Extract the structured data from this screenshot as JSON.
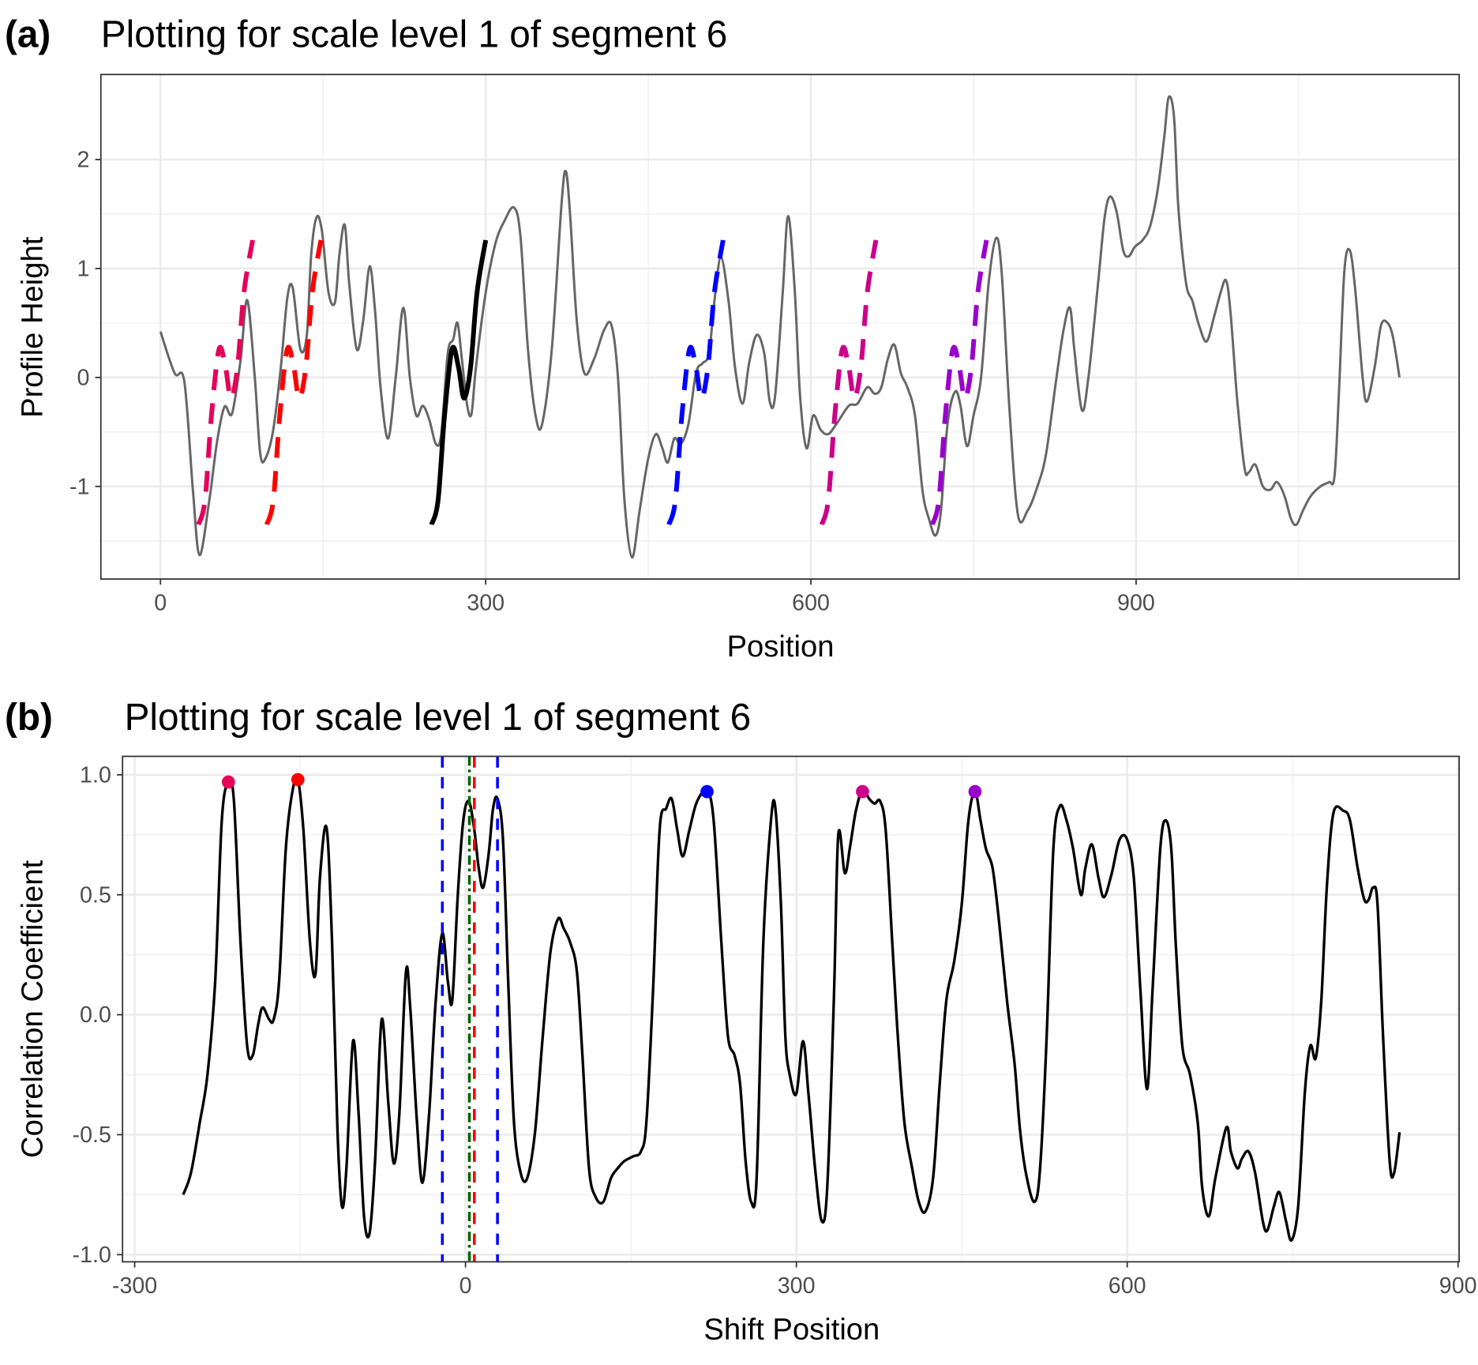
{
  "panels": [
    {
      "tag": "(a)",
      "title": "Plotting for scale level 1 of segment 6"
    },
    {
      "tag": "(b)",
      "title": "Plotting for scale level 1 of segment 6"
    }
  ],
  "chart_data": [
    {
      "type": "line",
      "title": "Plotting for scale level 1 of segment 6",
      "xlabel": "Position",
      "ylabel": "Profile Height",
      "xlim": [
        -55,
        1198
      ],
      "ylim": [
        -1.85,
        2.78
      ],
      "grid": true,
      "xticks": [
        0,
        300,
        600,
        900
      ],
      "xtick_labels": [
        "0",
        "300",
        "600",
        "900"
      ],
      "yticks": [
        2,
        1,
        0,
        -1
      ],
      "ytick_labels": [
        "2",
        "1",
        "0",
        "-1"
      ],
      "profile": {
        "color": "#666666",
        "x": [
          0,
          13,
          22,
          30,
          36,
          45,
          52,
          59,
          66,
          74,
          80,
          87,
          92,
          97,
          104,
          111,
          117,
          122,
          129,
          135,
          139,
          144,
          149,
          155,
          161,
          165,
          170,
          174,
          181,
          187,
          193,
          198,
          203,
          210,
          217,
          224,
          230,
          236,
          242,
          248,
          254,
          259,
          265,
          270,
          274,
          278,
          283,
          287,
          291,
          300,
          309,
          317,
          326,
          332,
          339,
          346,
          352,
          361,
          370,
          374,
          378,
          384,
          391,
          400,
          409,
          416,
          422,
          428,
          435,
          442,
          450,
          457,
          463,
          468,
          474,
          480,
          487,
          494,
          500,
          506,
          511,
          517,
          524,
          530,
          537,
          543,
          550,
          557,
          562,
          567,
          574,
          579,
          585,
          590,
          596,
          602,
          609,
          616,
          624,
          635,
          643,
          652,
          659,
          665,
          671,
          677,
          683,
          689,
          696,
          703,
          709,
          715,
          720,
          726,
          733,
          738,
          744,
          750,
          757,
          764,
          771,
          776,
          783,
          791,
          800,
          809,
          817,
          826,
          833,
          839,
          843,
          850,
          856,
          865,
          871,
          876,
          882,
          888,
          893,
          899,
          906,
          913,
          920,
          926,
          930,
          935,
          939,
          946,
          952,
          958,
          965,
          972,
          978,
          983,
          987,
          993,
          1000,
          1004,
          1010,
          1017,
          1024,
          1030,
          1037,
          1043,
          1048,
          1054,
          1061,
          1070,
          1078,
          1083,
          1087,
          1092,
          1097,
          1102,
          1109,
          1113,
          1120,
          1126,
          1132,
          1137,
          1143
        ],
        "y": [
          0.42,
          0.04,
          -0.04,
          -1.05,
          -1.63,
          -1.13,
          -0.6,
          -0.27,
          -0.33,
          0.17,
          0.71,
          0,
          -0.7,
          -0.74,
          -0.48,
          0.09,
          0.73,
          0.82,
          0.26,
          0.39,
          1.12,
          1.47,
          1.34,
          0.78,
          0.69,
          1.12,
          1.4,
          0.87,
          0.26,
          0.52,
          1.02,
          0.6,
          -0.09,
          -0.56,
          0,
          0.64,
          0,
          -0.35,
          -0.26,
          -0.39,
          -0.61,
          -0.52,
          0.22,
          0.35,
          0.5,
          0.17,
          -0.26,
          -0.33,
          0.09,
          0.78,
          1.23,
          1.43,
          1.56,
          1.3,
          0.26,
          -0.35,
          -0.43,
          0.26,
          1.6,
          1.89,
          1.47,
          0.52,
          0.04,
          0.17,
          0.43,
          0.48,
          0,
          -1.13,
          -1.65,
          -1.22,
          -0.74,
          -0.52,
          -0.65,
          -0.78,
          -0.56,
          -0.61,
          -0.43,
          0.04,
          0.13,
          0.22,
          0.7,
          1.1,
          0.7,
          0.09,
          -0.24,
          0.13,
          0.39,
          0.22,
          -0.22,
          -0.17,
          0.78,
          1.48,
          0.82,
          -0.17,
          -0.65,
          -0.35,
          -0.48,
          -0.52,
          -0.42,
          -0.26,
          -0.24,
          -0.09,
          -0.15,
          -0.09,
          0.17,
          0.3,
          0.04,
          -0.09,
          -0.35,
          -1.04,
          -1.3,
          -1.45,
          -1.22,
          -0.43,
          -0.13,
          -0.26,
          -0.63,
          -0.35,
          0,
          0.87,
          1.28,
          0.96,
          -0.26,
          -1.26,
          -1.22,
          -1.0,
          -0.7,
          -0.04,
          0.43,
          0.64,
          0.26,
          -0.3,
          0,
          0.87,
          1.47,
          1.66,
          1.52,
          1.17,
          1.11,
          1.2,
          1.26,
          1.39,
          1.73,
          2.21,
          2.57,
          2.39,
          1.56,
          0.87,
          0.7,
          0.48,
          0.33,
          0.56,
          0.78,
          0.89,
          0.61,
          -0.17,
          -0.83,
          -0.87,
          -0.8,
          -1.0,
          -1.03,
          -0.96,
          -1.09,
          -1.3,
          -1.35,
          -1.22,
          -1.09,
          -1.0,
          -0.96,
          -0.91,
          -0.17,
          0.96,
          1.17,
          0.82,
          0,
          -0.22,
          0.09,
          0.48,
          0.5,
          0.37,
          0
        ]
      },
      "segment": {
        "color": "#000000",
        "x": [
          250,
          256,
          262,
          269,
          275,
          280,
          286,
          292,
          300
        ],
        "y": [
          -1.35,
          -1.13,
          -0.35,
          0.26,
          0.09,
          -0.19,
          0.09,
          0.78,
          1.26
        ]
      },
      "matches": [
        {
          "shift": -215,
          "color": "#E6005A"
        },
        {
          "shift": -152,
          "color": "#FF0000"
        },
        {
          "shift": 219,
          "color": "#0000FF"
        },
        {
          "shift": 360,
          "color": "#CC0088"
        },
        {
          "shift": 462,
          "color": "#9900CC"
        }
      ]
    },
    {
      "type": "line",
      "title": "Plotting for scale level 1 of segment 6",
      "xlabel": "Shift Position",
      "ylabel": "Correlation Coefficient",
      "xlim": [
        -311,
        901
      ],
      "ylim": [
        -1.03,
        1.077
      ],
      "grid": true,
      "xticks": [
        -300,
        0,
        300,
        600,
        900
      ],
      "xtick_labels": [
        "-300",
        "0",
        "300",
        "600",
        "900"
      ],
      "yticks": [
        1.0,
        0.5,
        0.0,
        -0.5,
        -1.0
      ],
      "ytick_labels": [
        "1.0",
        "0.5",
        "0.0",
        "-0.5",
        "-1.0"
      ],
      "correlation": {
        "color": "#000000",
        "x": [
          -256,
          -249,
          -241,
          -234,
          -227,
          -221,
          -215,
          -210,
          -204,
          -198,
          -193,
          -188,
          -184,
          -178,
          -174,
          -169,
          -163,
          -157,
          -152,
          -147,
          -141,
          -136,
          -132,
          -126,
          -121,
          -116,
          -112,
          -108,
          -102,
          -97,
          -92,
          -87,
          -82,
          -76,
          -70,
          -65,
          -60,
          -54,
          -50,
          -44,
          -39,
          -33,
          -27,
          -21,
          -16,
          -12,
          -7,
          -2,
          3,
          8,
          12,
          16,
          21,
          25,
          29,
          34,
          39,
          44,
          50,
          56,
          63,
          70,
          77,
          84,
          89,
          95,
          101,
          106,
          112,
          118,
          125,
          132,
          138,
          144,
          152,
          159,
          164,
          170,
          176,
          182,
          187,
          192,
          197,
          203,
          210,
          219,
          225,
          232,
          238,
          244,
          249,
          254,
          259,
          264,
          270,
          277,
          281,
          286,
          290,
          294,
          300,
          306,
          311,
          317,
          323,
          328,
          334,
          338,
          344,
          349,
          354,
          360,
          366,
          371,
          376,
          381,
          387,
          392,
          398,
          405,
          411,
          417,
          424,
          430,
          436,
          443,
          450,
          456,
          462,
          467,
          472,
          478,
          484,
          491,
          498,
          503,
          509,
          516,
          521,
          527,
          533,
          539,
          545,
          551,
          558,
          562,
          568,
          574,
          579,
          586,
          593,
          600,
          606,
          612,
          618,
          623,
          630,
          635,
          640,
          644,
          650,
          657,
          664,
          668,
          674,
          680,
          690,
          694,
          700,
          704,
          710,
          716,
          723,
          727,
          733,
          738,
          744,
          749,
          755,
          761,
          766,
          771,
          776,
          781,
          787,
          796,
          802,
          809,
          815,
          819,
          823,
          827,
          832,
          838,
          842,
          847
        ],
        "y": [
          -0.75,
          -0.66,
          -0.45,
          -0.25,
          0.14,
          0.81,
          0.97,
          0.89,
          0.3,
          -0.13,
          -0.17,
          -0.04,
          0.03,
          -0.02,
          -0.02,
          0.14,
          0.69,
          0.93,
          0.98,
          0.77,
          0.3,
          0.17,
          0.57,
          0.78,
          0.3,
          -0.49,
          -0.8,
          -0.64,
          -0.11,
          -0.41,
          -0.84,
          -0.91,
          -0.61,
          -0.02,
          -0.37,
          -0.62,
          -0.41,
          0.18,
          0.02,
          -0.45,
          -0.7,
          -0.41,
          0.06,
          0.34,
          0.14,
          0.06,
          0.5,
          0.81,
          0.89,
          0.77,
          0.61,
          0.53,
          0.67,
          0.86,
          0.9,
          0.73,
          0.1,
          -0.45,
          -0.66,
          -0.68,
          -0.49,
          -0.09,
          0.26,
          0.4,
          0.36,
          0.3,
          0.18,
          -0.17,
          -0.64,
          -0.76,
          -0.78,
          -0.68,
          -0.64,
          -0.61,
          -0.59,
          -0.57,
          -0.45,
          0.1,
          0.77,
          0.86,
          0.9,
          0.77,
          0.66,
          0.77,
          0.89,
          0.93,
          0.81,
          0.3,
          -0.09,
          -0.17,
          -0.29,
          -0.61,
          -0.78,
          -0.68,
          0.3,
          0.81,
          0.86,
          0.46,
          -0.09,
          -0.25,
          -0.33,
          -0.11,
          -0.33,
          -0.64,
          -0.86,
          -0.72,
          0.06,
          0.75,
          0.59,
          0.71,
          0.85,
          0.94,
          0.9,
          0.88,
          0.89,
          0.77,
          0.3,
          -0.09,
          -0.45,
          -0.64,
          -0.78,
          -0.82,
          -0.68,
          -0.29,
          0.06,
          0.22,
          0.46,
          0.81,
          0.93,
          0.81,
          0.69,
          0.61,
          0.38,
          0.06,
          -0.21,
          -0.49,
          -0.68,
          -0.78,
          -0.64,
          -0.09,
          0.69,
          0.87,
          0.81,
          0.69,
          0.5,
          0.61,
          0.71,
          0.57,
          0.49,
          0.59,
          0.73,
          0.73,
          0.57,
          0.1,
          -0.31,
          0.1,
          0.69,
          0.81,
          0.69,
          0.3,
          -0.13,
          -0.25,
          -0.45,
          -0.72,
          -0.84,
          -0.68,
          -0.47,
          -0.57,
          -0.64,
          -0.6,
          -0.57,
          -0.66,
          -0.86,
          -0.9,
          -0.8,
          -0.74,
          -0.86,
          -0.94,
          -0.8,
          -0.33,
          -0.13,
          -0.18,
          0.06,
          0.53,
          0.84,
          0.85,
          0.81,
          0.61,
          0.48,
          0.48,
          0.53,
          0.46,
          -0.09,
          -0.61,
          -0.66,
          -0.49
        ]
      },
      "peaks": [
        {
          "x": -215,
          "y": 0.97,
          "color": "#E6005A"
        },
        {
          "x": -152,
          "y": 0.98,
          "color": "#FF0000"
        },
        {
          "x": 219,
          "y": 0.93,
          "color": "#0000FF"
        },
        {
          "x": 360,
          "y": 0.93,
          "color": "#CC0088"
        },
        {
          "x": 462,
          "y": 0.93,
          "color": "#9900CC"
        }
      ],
      "vlines": [
        {
          "x": -21,
          "color": "#0000FF",
          "style": "dashed"
        },
        {
          "x": 3.5,
          "color": "#006400",
          "style": "dashdot"
        },
        {
          "x": 8,
          "color": "#FF0000",
          "style": "dashed"
        },
        {
          "x": 29,
          "color": "#0000FF",
          "style": "dashed"
        }
      ]
    }
  ]
}
